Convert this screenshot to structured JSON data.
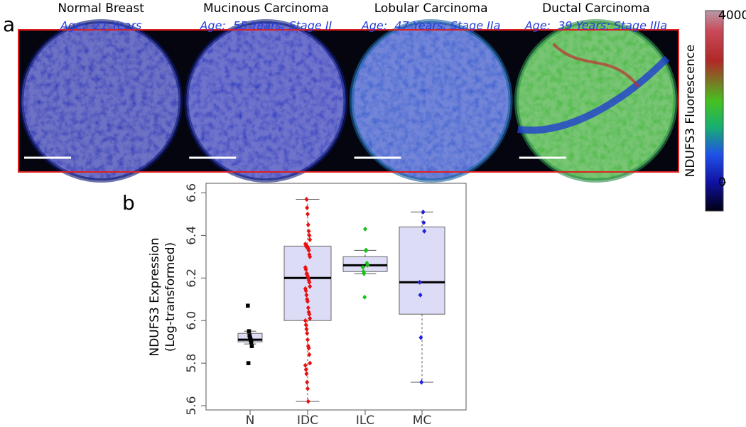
{
  "panel_a": {
    "label": "a",
    "border_color": "#e02020",
    "images": [
      {
        "title": "Normal Breast",
        "subtitle": "Age:  21 Years"
      },
      {
        "title": "Mucinous Carcinoma",
        "subtitle": "Age:  55 Years; Stage II"
      },
      {
        "title": "Lobular Carcinoma",
        "subtitle": "Age:  47 Years; Stage IIa"
      },
      {
        "title": "Ductal Carcinoma",
        "subtitle": "Age:  39 Years; Stage IIIa"
      }
    ],
    "colorbar": {
      "label": "NDUFS3 Fluorescence",
      "lim": [
        0,
        4000
      ],
      "ticks": [
        0,
        4000
      ]
    }
  },
  "chart_data": {
    "type": "box",
    "panel_label": "b",
    "ylabel": [
      "NDUFS3 Expression",
      "(Log-transformed)"
    ],
    "categories": [
      "N",
      "IDC",
      "ILC",
      "MC"
    ],
    "box_color": "#dcdcf6",
    "boxes": [
      {
        "whislo": 5.89,
        "q1": 5.9,
        "med": 5.91,
        "q3": 5.94,
        "whishi": 5.95
      },
      {
        "whislo": 5.62,
        "q1": 6.0,
        "med": 6.2,
        "q3": 6.35,
        "whishi": 6.57
      },
      {
        "whislo": 6.22,
        "q1": 6.23,
        "med": 6.26,
        "q3": 6.3,
        "whishi": 6.33
      },
      {
        "whislo": 5.71,
        "q1": 6.03,
        "med": 6.18,
        "q3": 6.44,
        "whishi": 6.51
      }
    ],
    "points": [
      {
        "color": "#000000",
        "marker": "square",
        "values": [
          6.07,
          5.8,
          5.95,
          5.93,
          5.92,
          5.91,
          5.9,
          5.88
        ]
      },
      {
        "color": "#e81010",
        "marker": "diamond",
        "values": [
          6.57,
          6.53,
          6.5,
          6.45,
          6.42,
          6.4,
          6.38,
          6.36,
          6.35,
          6.35,
          6.35,
          6.34,
          6.34,
          6.33,
          6.31,
          6.3,
          6.25,
          6.24,
          6.22,
          6.22,
          6.21,
          6.2,
          6.19,
          6.18,
          6.16,
          6.15,
          6.14,
          6.12,
          6.1,
          6.09,
          6.06,
          6.04,
          6.03,
          6.01,
          6.0,
          5.98,
          5.96,
          5.94,
          5.91,
          5.88,
          5.87,
          5.84,
          5.8,
          5.79,
          5.77,
          5.75,
          5.71,
          5.68,
          5.62
        ]
      },
      {
        "color": "#18c018",
        "marker": "diamond",
        "values": [
          6.43,
          6.33,
          6.33,
          6.27,
          6.26,
          6.25,
          6.23,
          6.22,
          6.11
        ]
      },
      {
        "color": "#2020e0",
        "marker": "diamond",
        "values": [
          6.51,
          6.46,
          6.42,
          6.18,
          6.12,
          5.92,
          5.71
        ]
      }
    ],
    "ylim": [
      5.58,
      6.645
    ],
    "yticks": [
      5.6,
      5.8,
      {
        "value": 6,
        "label": "6.0"
      },
      6.2,
      6.4,
      6.6
    ]
  }
}
